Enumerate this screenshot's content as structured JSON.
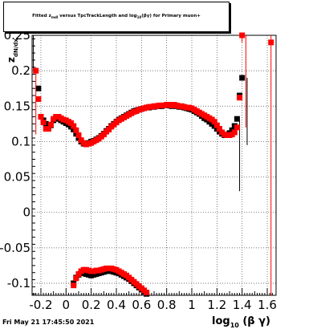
{
  "chart_data": {
    "type": "scatter",
    "title": "Fitted z_{mdl} versus TpcTrackLength and log_{10}(βγ) for Primary muon+",
    "xlabel": "log_{10} (β γ)",
    "ylabel": "z_{dN/dx}",
    "xlim": [
      -0.27,
      1.67
    ],
    "ylim": [
      -0.117,
      0.25
    ],
    "grid": true,
    "x_ticks": [
      "-0.2",
      "0",
      "0.2",
      "0.4",
      "0.6",
      "0.8",
      "1",
      "1.2",
      "1.4",
      "1.6"
    ],
    "x_tick_values": [
      -0.2,
      0.0,
      0.2,
      0.4,
      0.6,
      0.8,
      1.0,
      1.2,
      1.4,
      1.6
    ],
    "y_ticks": [
      "-0.1",
      "-0.05",
      "0",
      "0.05",
      "0.1",
      "0.15",
      "0.2",
      "0.25"
    ],
    "y_tick_values": [
      -0.1,
      -0.05,
      0.0,
      0.05,
      0.1,
      0.15,
      0.2,
      0.25
    ],
    "series": [
      {
        "marker": "square",
        "color": "#000000",
        "points": [
          [
            -0.22,
            0.175
          ],
          [
            -0.2,
            0.135
          ],
          [
            -0.18,
            0.13
          ],
          [
            -0.16,
            0.125
          ],
          [
            -0.14,
            0.12
          ],
          [
            -0.12,
            0.123
          ],
          [
            -0.1,
            0.13
          ],
          [
            -0.08,
            0.133
          ],
          [
            -0.06,
            0.132
          ],
          [
            -0.04,
            0.13
          ],
          [
            -0.02,
            0.128
          ],
          [
            0.0,
            0.126
          ],
          [
            0.02,
            0.124
          ],
          [
            0.04,
            0.121
          ],
          [
            0.06,
            0.117
          ],
          [
            0.08,
            0.111
          ],
          [
            0.1,
            0.105
          ],
          [
            0.12,
            0.1
          ],
          [
            0.14,
            0.097
          ],
          [
            0.16,
            0.097
          ],
          [
            0.18,
            0.098
          ],
          [
            0.2,
            0.1
          ],
          [
            0.22,
            0.101
          ],
          [
            0.24,
            0.103
          ],
          [
            0.26,
            0.105
          ],
          [
            0.28,
            0.108
          ],
          [
            0.3,
            0.111
          ],
          [
            0.32,
            0.115
          ],
          [
            0.34,
            0.118
          ],
          [
            0.36,
            0.122
          ],
          [
            0.38,
            0.125
          ],
          [
            0.4,
            0.128
          ],
          [
            0.42,
            0.131
          ],
          [
            0.44,
            0.133
          ],
          [
            0.46,
            0.135
          ],
          [
            0.48,
            0.137
          ],
          [
            0.5,
            0.139
          ],
          [
            0.52,
            0.141
          ],
          [
            0.54,
            0.143
          ],
          [
            0.56,
            0.144
          ],
          [
            0.58,
            0.145
          ],
          [
            0.6,
            0.146
          ],
          [
            0.62,
            0.147
          ],
          [
            0.64,
            0.148
          ],
          [
            0.66,
            0.148
          ],
          [
            0.68,
            0.149
          ],
          [
            0.7,
            0.149
          ],
          [
            0.72,
            0.15
          ],
          [
            0.74,
            0.15
          ],
          [
            0.76,
            0.15
          ],
          [
            0.78,
            0.151
          ],
          [
            0.8,
            0.151
          ],
          [
            0.82,
            0.151
          ],
          [
            0.84,
            0.15
          ],
          [
            0.86,
            0.151
          ],
          [
            0.88,
            0.15
          ],
          [
            0.9,
            0.149
          ],
          [
            0.92,
            0.149
          ],
          [
            0.94,
            0.148
          ],
          [
            0.96,
            0.147
          ],
          [
            0.98,
            0.146
          ],
          [
            1.0,
            0.145
          ],
          [
            1.02,
            0.143
          ],
          [
            1.04,
            0.141
          ],
          [
            1.06,
            0.139
          ],
          [
            1.08,
            0.136
          ],
          [
            1.1,
            0.133
          ],
          [
            1.12,
            0.131
          ],
          [
            1.14,
            0.128
          ],
          [
            1.16,
            0.125
          ],
          [
            1.18,
            0.122
          ],
          [
            1.2,
            0.118
          ],
          [
            1.22,
            0.114
          ],
          [
            1.24,
            0.111
          ],
          [
            1.26,
            0.109
          ],
          [
            1.28,
            0.11
          ],
          [
            1.3,
            0.112
          ],
          [
            1.32,
            0.116
          ],
          [
            1.34,
            0.122
          ],
          [
            1.36,
            0.132
          ],
          [
            1.38,
            0.165
          ],
          [
            1.4,
            0.19
          ],
          [
            0.06,
            -0.1
          ],
          [
            0.08,
            -0.092
          ],
          [
            0.1,
            -0.088
          ],
          [
            0.12,
            -0.086
          ],
          [
            0.14,
            -0.086
          ],
          [
            0.16,
            -0.087
          ],
          [
            0.18,
            -0.088
          ],
          [
            0.2,
            -0.089
          ],
          [
            0.22,
            -0.088
          ],
          [
            0.24,
            -0.087
          ],
          [
            0.26,
            -0.086
          ],
          [
            0.28,
            -0.085
          ],
          [
            0.3,
            -0.084
          ],
          [
            0.32,
            -0.083
          ],
          [
            0.34,
            -0.083
          ],
          [
            0.36,
            -0.083
          ],
          [
            0.38,
            -0.084
          ],
          [
            0.4,
            -0.085
          ],
          [
            0.42,
            -0.086
          ],
          [
            0.44,
            -0.088
          ],
          [
            0.46,
            -0.09
          ],
          [
            0.48,
            -0.092
          ],
          [
            0.5,
            -0.094
          ],
          [
            0.52,
            -0.097
          ],
          [
            0.54,
            -0.1
          ],
          [
            0.56,
            -0.103
          ],
          [
            0.58,
            -0.106
          ],
          [
            0.6,
            -0.109
          ],
          [
            0.62,
            -0.112
          ],
          [
            0.64,
            -0.115
          ]
        ],
        "errors": [
          [
            -0.26,
            0.2,
            0.3
          ],
          [
            1.44,
            0.19,
            0.095
          ],
          [
            1.38,
            0.13,
            0.03
          ]
        ]
      },
      {
        "marker": "square",
        "color": "#ff0000",
        "points": [
          [
            -0.24,
            0.2
          ],
          [
            -0.22,
            0.16
          ],
          [
            -0.2,
            0.135
          ],
          [
            -0.18,
            0.127
          ],
          [
            -0.16,
            0.118
          ],
          [
            -0.14,
            0.118
          ],
          [
            -0.12,
            0.124
          ],
          [
            -0.1,
            0.132
          ],
          [
            -0.08,
            0.135
          ],
          [
            -0.06,
            0.135
          ],
          [
            -0.04,
            0.133
          ],
          [
            -0.02,
            0.131
          ],
          [
            0.0,
            0.13
          ],
          [
            0.02,
            0.128
          ],
          [
            0.04,
            0.126
          ],
          [
            0.06,
            0.122
          ],
          [
            0.08,
            0.116
          ],
          [
            0.1,
            0.109
          ],
          [
            0.12,
            0.102
          ],
          [
            0.14,
            0.098
          ],
          [
            0.16,
            0.096
          ],
          [
            0.18,
            0.097
          ],
          [
            0.2,
            0.098
          ],
          [
            0.22,
            0.1
          ],
          [
            0.24,
            0.102
          ],
          [
            0.26,
            0.104
          ],
          [
            0.28,
            0.107
          ],
          [
            0.3,
            0.11
          ],
          [
            0.32,
            0.114
          ],
          [
            0.34,
            0.117
          ],
          [
            0.36,
            0.121
          ],
          [
            0.38,
            0.124
          ],
          [
            0.4,
            0.127
          ],
          [
            0.42,
            0.13
          ],
          [
            0.44,
            0.132
          ],
          [
            0.46,
            0.134
          ],
          [
            0.48,
            0.136
          ],
          [
            0.5,
            0.138
          ],
          [
            0.52,
            0.14
          ],
          [
            0.54,
            0.142
          ],
          [
            0.56,
            0.143
          ],
          [
            0.58,
            0.145
          ],
          [
            0.6,
            0.146
          ],
          [
            0.62,
            0.147
          ],
          [
            0.64,
            0.148
          ],
          [
            0.66,
            0.149
          ],
          [
            0.68,
            0.149
          ],
          [
            0.7,
            0.15
          ],
          [
            0.72,
            0.15
          ],
          [
            0.74,
            0.151
          ],
          [
            0.76,
            0.151
          ],
          [
            0.78,
            0.151
          ],
          [
            0.8,
            0.152
          ],
          [
            0.82,
            0.152
          ],
          [
            0.84,
            0.151
          ],
          [
            0.86,
            0.152
          ],
          [
            0.88,
            0.151
          ],
          [
            0.9,
            0.15
          ],
          [
            0.92,
            0.15
          ],
          [
            0.94,
            0.149
          ],
          [
            0.96,
            0.148
          ],
          [
            0.98,
            0.148
          ],
          [
            1.0,
            0.147
          ],
          [
            1.02,
            0.145
          ],
          [
            1.04,
            0.143
          ],
          [
            1.06,
            0.141
          ],
          [
            1.08,
            0.139
          ],
          [
            1.1,
            0.137
          ],
          [
            1.12,
            0.135
          ],
          [
            1.14,
            0.133
          ],
          [
            1.16,
            0.131
          ],
          [
            1.18,
            0.128
          ],
          [
            1.2,
            0.123
          ],
          [
            1.22,
            0.118
          ],
          [
            1.24,
            0.113
          ],
          [
            1.26,
            0.11
          ],
          [
            1.28,
            0.109
          ],
          [
            1.3,
            0.109
          ],
          [
            1.32,
            0.11
          ],
          [
            1.34,
            0.113
          ],
          [
            1.36,
            0.12
          ],
          [
            1.38,
            0.162
          ],
          [
            1.4,
            0.25
          ],
          [
            1.63,
            0.24
          ],
          [
            0.06,
            -0.103
          ],
          [
            0.08,
            -0.093
          ],
          [
            0.1,
            -0.087
          ],
          [
            0.12,
            -0.083
          ],
          [
            0.14,
            -0.081
          ],
          [
            0.16,
            -0.081
          ],
          [
            0.18,
            -0.082
          ],
          [
            0.2,
            -0.083
          ],
          [
            0.22,
            -0.083
          ],
          [
            0.24,
            -0.082
          ],
          [
            0.26,
            -0.082
          ],
          [
            0.28,
            -0.081
          ],
          [
            0.3,
            -0.08
          ],
          [
            0.32,
            -0.079
          ],
          [
            0.34,
            -0.079
          ],
          [
            0.36,
            -0.079
          ],
          [
            0.38,
            -0.08
          ],
          [
            0.4,
            -0.081
          ],
          [
            0.42,
            -0.083
          ],
          [
            0.44,
            -0.085
          ],
          [
            0.46,
            -0.087
          ],
          [
            0.48,
            -0.089
          ],
          [
            0.5,
            -0.092
          ],
          [
            0.52,
            -0.095
          ],
          [
            0.54,
            -0.098
          ],
          [
            0.56,
            -0.101
          ],
          [
            0.58,
            -0.104
          ],
          [
            0.6,
            -0.107
          ],
          [
            0.62,
            -0.11
          ],
          [
            0.64,
            -0.113
          ]
        ],
        "errors": [
          [
            -0.24,
            0.11,
            0.205
          ],
          [
            1.4,
            0.24,
            0.25
          ],
          [
            1.43,
            0.12,
            0.25
          ],
          [
            1.63,
            -0.117,
            0.25
          ]
        ]
      }
    ]
  },
  "footer": {
    "timestamp": "Fri May 21 17:45:50 2021"
  }
}
